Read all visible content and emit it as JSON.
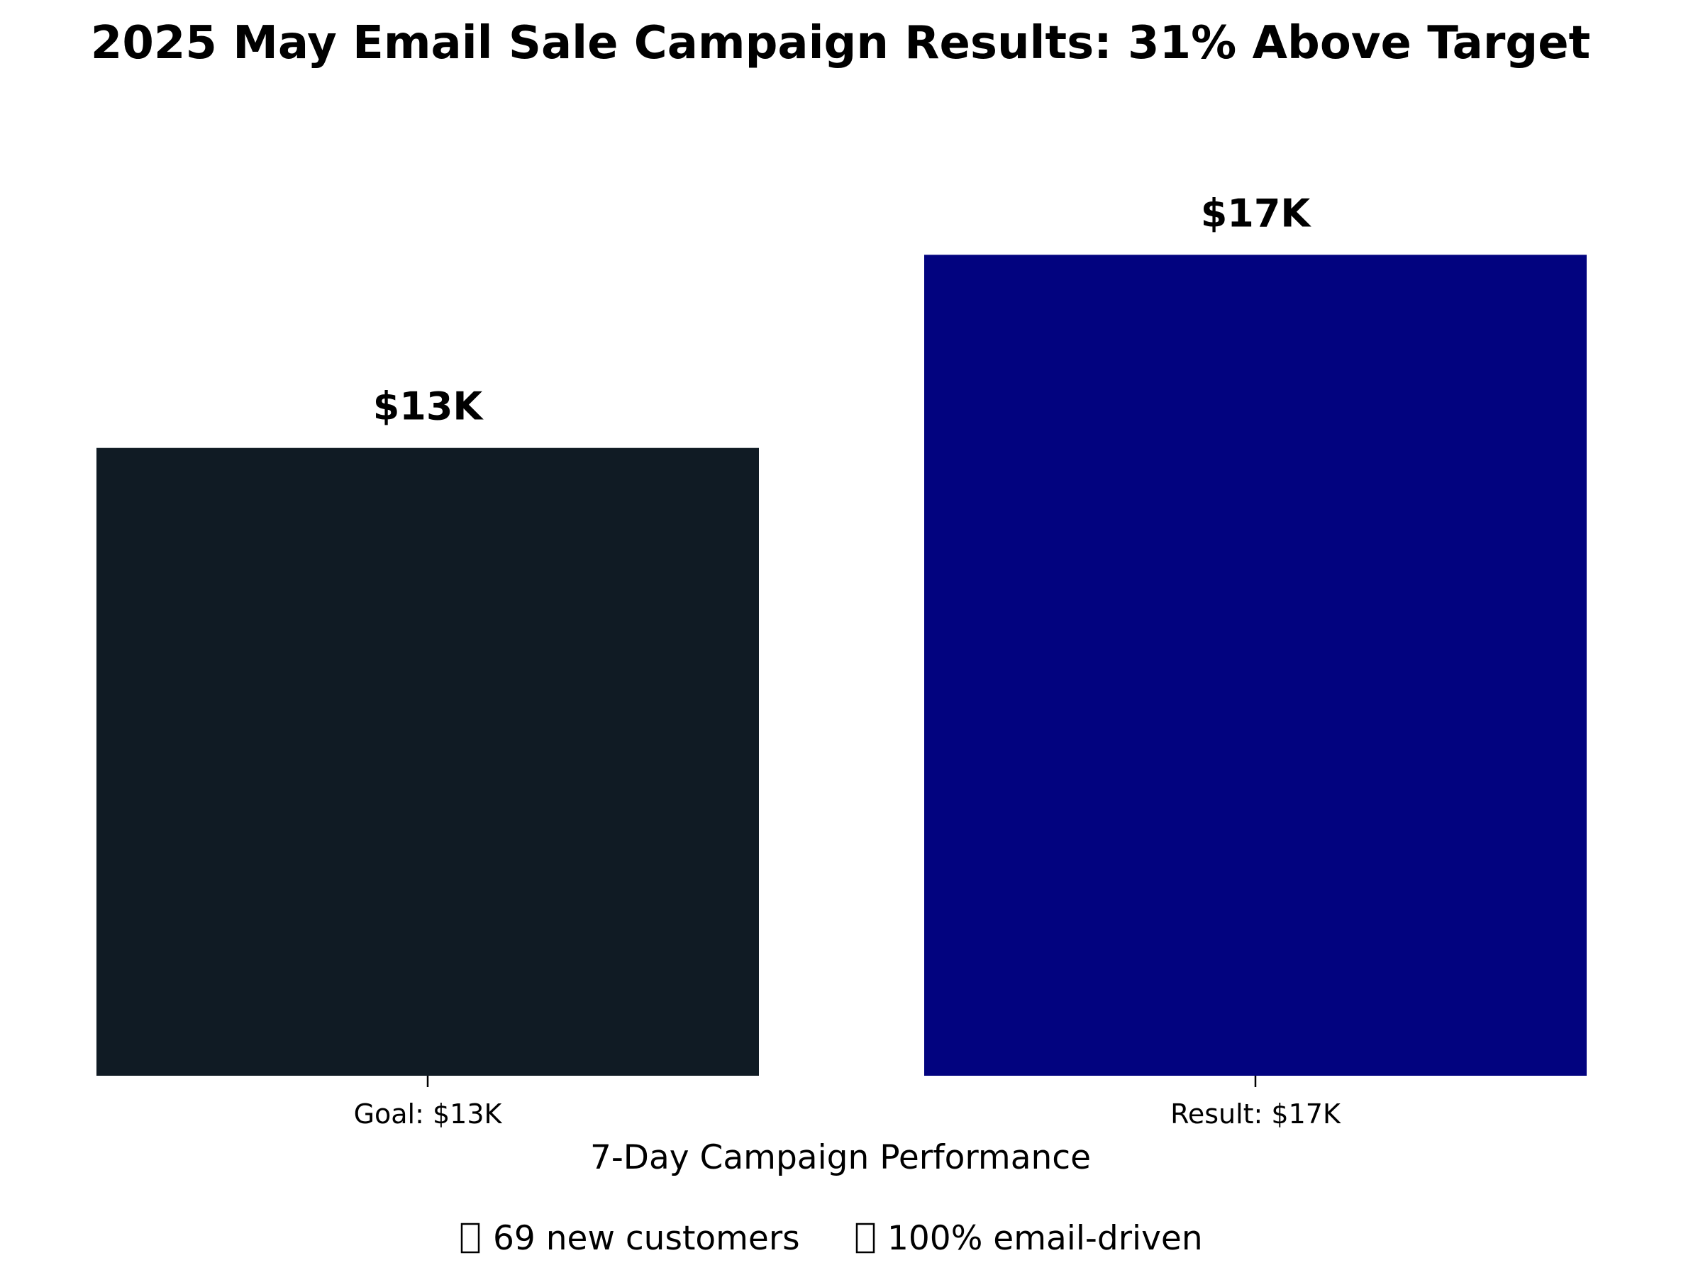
{
  "chart_data": {
    "type": "bar",
    "title": "2025 May Email Sale Campaign Results: 31% Above Target",
    "xlabel": "7-Day Campaign Performance",
    "ylabel": "",
    "categories": [
      "Goal: $13K",
      "Result: $17K"
    ],
    "values": [
      13,
      17
    ],
    "value_labels": [
      "$13K",
      "$17K"
    ],
    "colors": [
      "#101b24",
      "#02037f"
    ],
    "ylim": [
      0,
      20
    ],
    "grid": false,
    "legend": "none",
    "footnote": {
      "items": [
        {
          "icon": "missing-glyph-icon",
          "text": "69 new customers"
        },
        {
          "icon": "missing-glyph-icon",
          "text": "100% email-driven"
        }
      ]
    }
  }
}
